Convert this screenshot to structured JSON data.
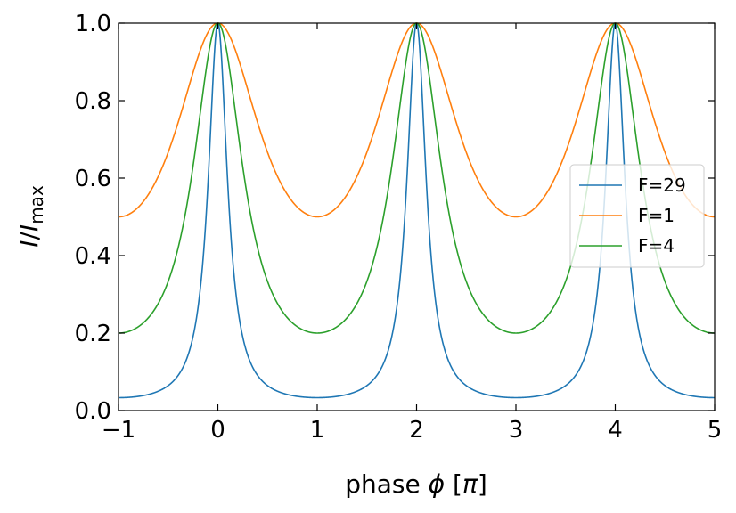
{
  "chart_data": {
    "type": "line",
    "title": "",
    "xlabel": {
      "prefix": "phase ",
      "symbol": "ϕ",
      "unit_open": " [",
      "unit_symbol": "π",
      "unit_close": "]"
    },
    "ylabel": {
      "num": "I",
      "slash": "/",
      "den": "I",
      "sub": "max"
    },
    "xlim": [
      -1,
      5
    ],
    "ylim": [
      0,
      1
    ],
    "xticks": [
      -1,
      0,
      1,
      2,
      3,
      4,
      5
    ],
    "xtick_labels": [
      "−1",
      "0",
      "1",
      "2",
      "3",
      "4",
      "5"
    ],
    "yticks": [
      0,
      0.2,
      0.4,
      0.6,
      0.8,
      1.0
    ],
    "ytick_labels": [
      "0.0",
      "0.2",
      "0.4",
      "0.6",
      "0.8",
      "1.0"
    ],
    "grid": false,
    "legend_position": "right",
    "series": [
      {
        "name": "F=29",
        "F": 29,
        "color": "#1f77b4"
      },
      {
        "name": "F=1",
        "F": 1,
        "color": "#ff7f0e"
      },
      {
        "name": "F=4",
        "F": 4,
        "color": "#2ca02c"
      }
    ],
    "formula": "I/Imax = 1 / (1 + F sin^2(phi*pi/2)), phi in units of pi"
  }
}
